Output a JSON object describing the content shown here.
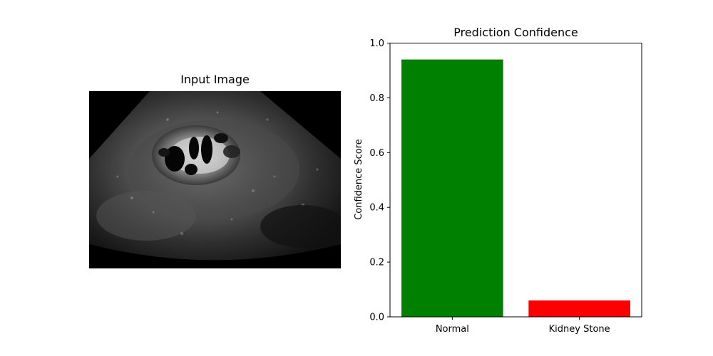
{
  "figure": {
    "image_panel": {
      "title": "Input Image",
      "image_description_icon": "ultrasound-kidney-image"
    },
    "chart_panel": {
      "title": "Prediction Confidence"
    }
  },
  "chart_data": {
    "type": "bar",
    "title": "Prediction Confidence",
    "xlabel": "",
    "ylabel": "Confidence Score",
    "categories": [
      "Normal",
      "Kidney Stone"
    ],
    "values": [
      0.94,
      0.06
    ],
    "colors": [
      "#008000",
      "#ff0000"
    ],
    "ylim": [
      0,
      1.0
    ],
    "yticks": [
      "0.0",
      "0.2",
      "0.4",
      "0.6",
      "0.8",
      "1.0"
    ],
    "grid": false
  }
}
